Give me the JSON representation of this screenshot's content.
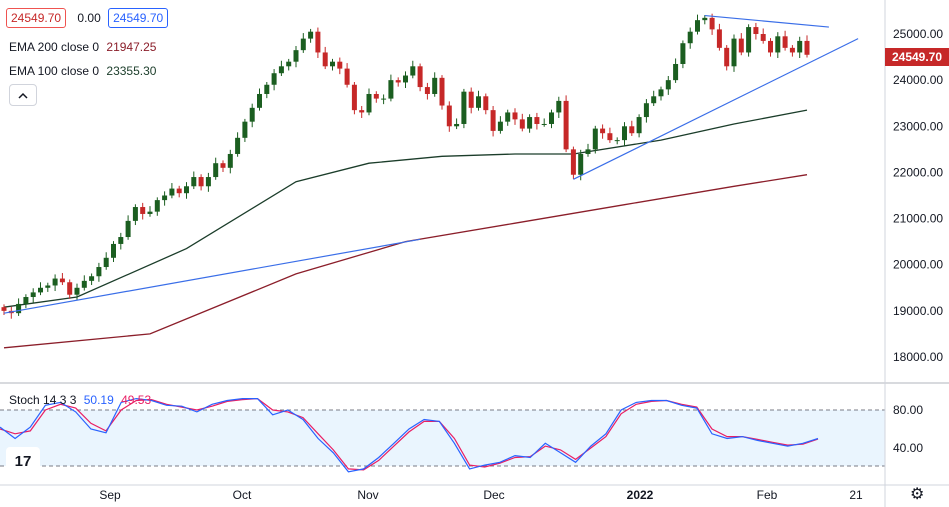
{
  "header": {
    "open_value": "24549.70",
    "change_value": "0.00",
    "close_value": "24549.70",
    "ema200": {
      "label": "EMA 200 close 0",
      "value": "21947.25"
    },
    "ema100": {
      "label": "EMA 100 close 0",
      "value": "23355.30"
    }
  },
  "last_price": "24549.70",
  "stoch_legend": {
    "label": "Stoch 14 3 3",
    "k": "50.19",
    "d": "49.53"
  },
  "colors": {
    "up": "#26a69a",
    "down": "#ef5350",
    "candle_up": "#1b5e20",
    "candle_down": "#c62828",
    "ema100": "#1b3d2a",
    "ema200": "#8b1e2a",
    "trend": "#3a6ee8",
    "stoch_k": "#2962ff",
    "stoch_d": "#e91e63"
  },
  "icons": {
    "collapse": "chevron-up-icon",
    "logo": "tradingview-logo",
    "settings": "gear-icon"
  },
  "logo_text": "17",
  "chart_data": {
    "type": "candlestick",
    "price_axis": {
      "ticks": [
        "25000.00",
        "24000.00",
        "23000.00",
        "22000.00",
        "21000.00",
        "20000.00",
        "19000.00",
        "18000.00"
      ],
      "range": [
        17850,
        25450
      ]
    },
    "stoch_axis": {
      "ticks": [
        "80.00",
        "40.00"
      ],
      "range": [
        0,
        100
      ],
      "bands": [
        80,
        20
      ]
    },
    "time_axis": {
      "labels": [
        "Sep",
        "Oct",
        "Nov",
        "Dec",
        "2022",
        "Feb",
        "21"
      ]
    },
    "closes": [
      19000,
      18950,
      19150,
      19300,
      19400,
      19500,
      19550,
      19700,
      19620,
      19350,
      19500,
      19650,
      19750,
      19950,
      20150,
      20450,
      20600,
      20950,
      21250,
      21100,
      21150,
      21400,
      21500,
      21650,
      21550,
      21700,
      21900,
      21700,
      21900,
      22200,
      22100,
      22400,
      22750,
      23100,
      23400,
      23700,
      23900,
      24150,
      24300,
      24400,
      24650,
      24900,
      25050,
      24600,
      24300,
      24400,
      24250,
      23900,
      23350,
      23300,
      23700,
      23600,
      23600,
      24000,
      23950,
      24100,
      24300,
      23850,
      23700,
      24050,
      23450,
      23000,
      23050,
      23750,
      23400,
      23650,
      23350,
      22900,
      23100,
      23300,
      23150,
      22950,
      23200,
      23050,
      23050,
      23300,
      23550,
      22500,
      21950,
      22400,
      22500,
      22950,
      22850,
      22700,
      22700,
      23000,
      22850,
      23200,
      23500,
      23650,
      23800,
      24000,
      24350,
      24800,
      25050,
      25300,
      25350,
      25100,
      24700,
      24300,
      24900,
      24600,
      25150,
      25000,
      24850,
      24600,
      24950,
      24700,
      24600,
      24850,
      24549.7
    ],
    "ema100_points": [
      [
        0,
        19080
      ],
      [
        10,
        19300
      ],
      [
        25,
        20350
      ],
      [
        40,
        21800
      ],
      [
        50,
        22200
      ],
      [
        60,
        22350
      ],
      [
        70,
        22400
      ],
      [
        78,
        22400
      ],
      [
        90,
        22700
      ],
      [
        100,
        23050
      ],
      [
        110,
        23350
      ]
    ],
    "ema200_points": [
      [
        0,
        18200
      ],
      [
        20,
        18500
      ],
      [
        40,
        19800
      ],
      [
        55,
        20500
      ],
      [
        70,
        20900
      ],
      [
        85,
        21300
      ],
      [
        100,
        21700
      ],
      [
        110,
        21950
      ]
    ],
    "trendlines": [
      {
        "from": [
          0,
          18950
        ],
        "to": [
          57,
          20550
        ]
      },
      {
        "from": [
          78,
          21850
        ],
        "to": [
          117,
          24900
        ]
      },
      {
        "from": [
          96,
          25400
        ],
        "to": [
          113,
          25150
        ]
      }
    ],
    "stoch_k": [
      62,
      50,
      62,
      85,
      88,
      78,
      60,
      56,
      88,
      92,
      90,
      85,
      84,
      78,
      86,
      90,
      92,
      92,
      75,
      80,
      70,
      50,
      35,
      15,
      18,
      30,
      45,
      60,
      70,
      68,
      45,
      18,
      22,
      25,
      32,
      30,
      45,
      35,
      25,
      42,
      55,
      80,
      88,
      90,
      90,
      85,
      82,
      55,
      50,
      52,
      48,
      45,
      42,
      45,
      50
    ],
    "stoch_d": [
      60,
      55,
      58,
      80,
      86,
      82,
      66,
      58,
      80,
      90,
      91,
      86,
      83,
      80,
      84,
      89,
      91,
      92,
      80,
      78,
      72,
      55,
      38,
      18,
      17,
      27,
      42,
      57,
      68,
      68,
      50,
      22,
      20,
      24,
      30,
      31,
      42,
      38,
      28,
      40,
      52,
      76,
      86,
      89,
      90,
      86,
      83,
      60,
      52,
      52,
      49,
      46,
      43,
      44,
      49.5
    ]
  }
}
